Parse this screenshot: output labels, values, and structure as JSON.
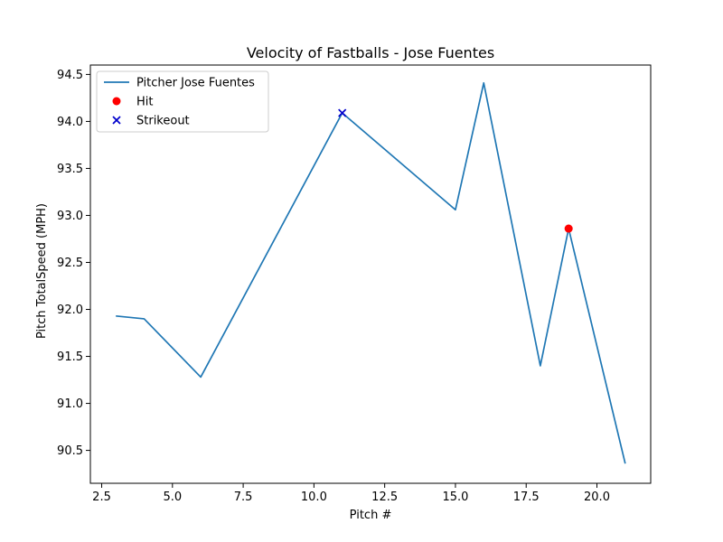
{
  "chart_data": {
    "type": "line",
    "title": "Velocity of Fastballs - Jose Fuentes",
    "xlabel": "Pitch #",
    "ylabel": "Pitch TotalSpeed (MPH)",
    "xlim": [
      2.1,
      21.9
    ],
    "ylim": [
      90.15,
      94.6
    ],
    "xticks": [
      2.5,
      5.0,
      7.5,
      10.0,
      12.5,
      15.0,
      17.5,
      20.0
    ],
    "xtick_labels": [
      "2.5",
      "5.0",
      "7.5",
      "10.0",
      "12.5",
      "15.0",
      "17.5",
      "20.0"
    ],
    "yticks": [
      90.5,
      91.0,
      91.5,
      92.0,
      92.5,
      93.0,
      93.5,
      94.0,
      94.5
    ],
    "ytick_labels": [
      "90.5",
      "91.0",
      "91.5",
      "92.0",
      "92.5",
      "93.0",
      "93.5",
      "94.0",
      "94.5"
    ],
    "grid": false,
    "legend_position": "top-left",
    "series": [
      {
        "name": "Pitcher Jose Fuentes",
        "kind": "line",
        "color": "#1f77b4",
        "x": [
          3,
          4,
          6,
          11,
          15,
          16,
          18,
          19,
          21
        ],
        "y": [
          91.93,
          91.9,
          91.28,
          94.09,
          93.06,
          94.41,
          91.4,
          92.86,
          90.36
        ]
      },
      {
        "name": "Hit",
        "kind": "scatter",
        "marker": "circle",
        "color": "#ff0000",
        "x": [
          19
        ],
        "y": [
          92.86
        ]
      },
      {
        "name": "Strikeout",
        "kind": "scatter",
        "marker": "x",
        "color": "#0000cc",
        "x": [
          11
        ],
        "y": [
          94.09
        ]
      }
    ]
  }
}
